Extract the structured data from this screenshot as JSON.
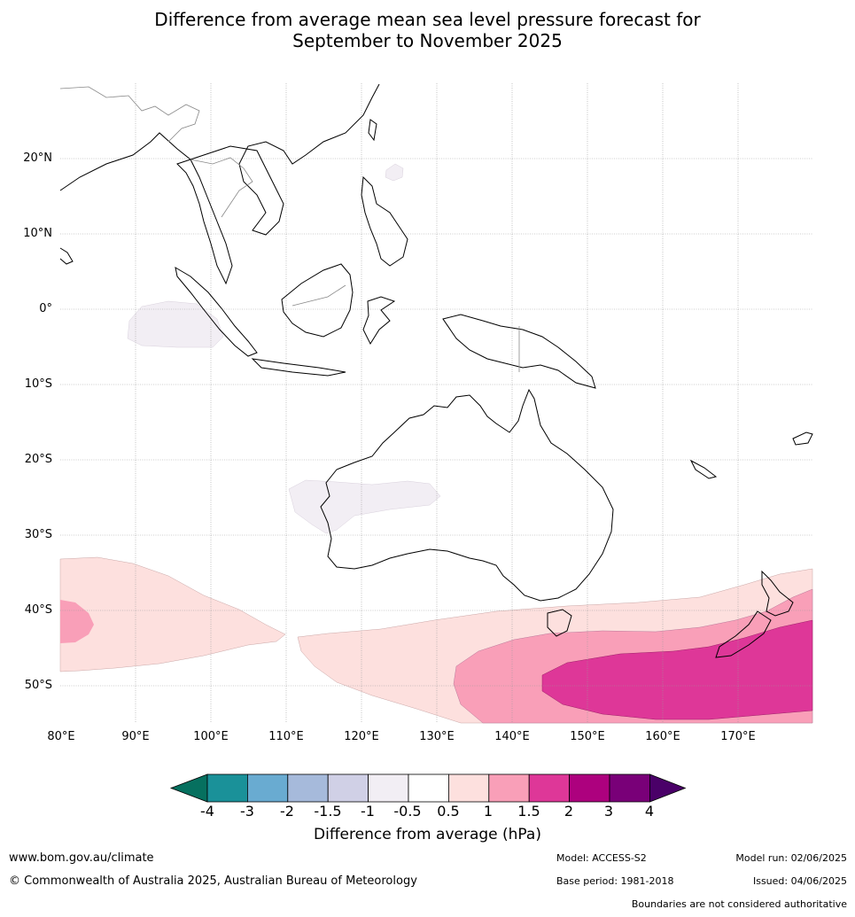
{
  "title_line1": "Difference from average mean sea level pressure forecast for",
  "title_line2": "September to November 2025",
  "map": {
    "region": "Australia and Maritime Continent",
    "lon_range": [
      80,
      180
    ],
    "lat_range": [
      -55,
      30
    ],
    "lat_labels": [
      "20°N",
      "10°N",
      "0°",
      "10°S",
      "20°S",
      "30°S",
      "40°S",
      "50°S"
    ],
    "lon_labels": [
      "80°E",
      "90°E",
      "100°E",
      "110°E",
      "120°E",
      "130°E",
      "140°E",
      "150°E",
      "160°E",
      "170°E"
    ],
    "anomaly_areas": [
      {
        "name": "indian-ocean-west-pale",
        "class": "0.5 to 1",
        "color": "#fde0de"
      },
      {
        "name": "indian-ocean-west-core",
        "class": "1 to 1.5",
        "color": "#f99fb8"
      },
      {
        "name": "southern-ocean-pale",
        "class": "0.5 to 1",
        "color": "#fde0de"
      },
      {
        "name": "southern-ocean-mid",
        "class": "1 to 1.5",
        "color": "#f99fb8"
      },
      {
        "name": "tasman-sea-high",
        "class": "1.5 to 2",
        "color": "#de3798"
      },
      {
        "name": "equatorial-indian-low",
        "class": "-1 to -0.5",
        "color": "#f2eef4"
      },
      {
        "name": "western-australia-low",
        "class": "-1 to -0.5",
        "color": "#f2eef4"
      },
      {
        "name": "philippine-sea-low",
        "class": "-1 to -0.5",
        "color": "#f2eef4"
      }
    ]
  },
  "colorbar": {
    "ticks": [
      "-4",
      "-3",
      "-2",
      "-1.5",
      "-1",
      "-0.5",
      "0.5",
      "1",
      "1.5",
      "2",
      "3",
      "4"
    ],
    "colors": [
      "#06705f",
      "#1a9199",
      "#69abd1",
      "#a6badb",
      "#d0d0e6",
      "#f2eef4",
      "#ffffff",
      "#fde0de",
      "#f99fb8",
      "#de3798",
      "#ad017e",
      "#790078",
      "#4a0068"
    ],
    "label": "Difference from average (hPa)"
  },
  "footer": {
    "url": "www.bom.gov.au/climate",
    "copyright": "© Commonwealth of Australia 2025, Australian Bureau of Meteorology",
    "model": "Model: ACCESS-S2",
    "base_period": "Base period: 1981-2018",
    "model_run": "Model run: 02/06/2025",
    "issued": "Issued: 04/06/2025",
    "disclaimer": "Boundaries are not considered authoritative"
  }
}
